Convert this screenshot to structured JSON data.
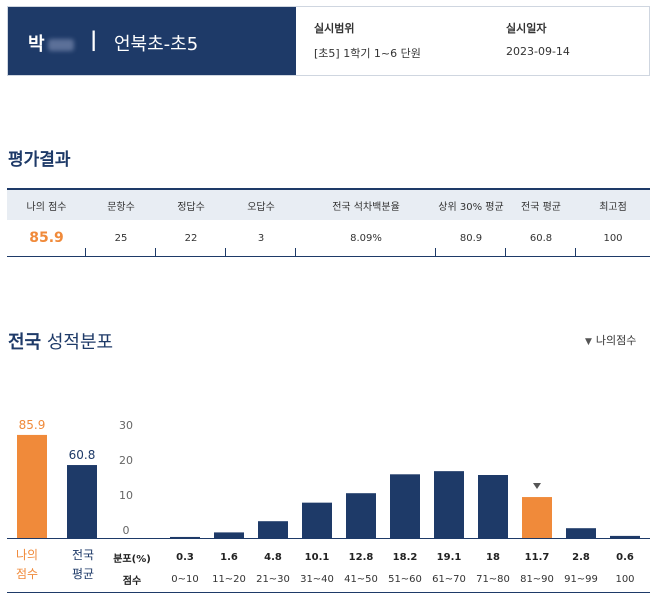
{
  "header": {
    "student_name": "박",
    "separator": "|",
    "class_name": "언북초-초5",
    "range_label": "실시범위",
    "range_value": "[초5] 1학기 1~6 단원",
    "date_label": "실시일자",
    "date_value": "2023-09-14"
  },
  "results": {
    "title": "평가결과",
    "columns": [
      "나의 점수",
      "문항수",
      "정답수",
      "오답수",
      "전국 석차백분율",
      "상위 30% 평균",
      "전국 평균",
      "최고점"
    ],
    "values": [
      "85.9",
      "25",
      "22",
      "3",
      "8.09%",
      "80.9",
      "60.8",
      "100"
    ]
  },
  "distribution": {
    "title_bold": "전국",
    "title_rest": "성적분포",
    "legend": "나의점수",
    "my_label_line1": "나의",
    "my_label_line2": "점수",
    "nat_label_line1": "전국",
    "nat_label_line2": "평균",
    "row1_label": "분포(%)",
    "row2_label": "점수"
  },
  "colors": {
    "navy": "#1e3a68",
    "orange": "#f08a3a"
  },
  "chart_data": [
    {
      "type": "bar",
      "categories": [
        "나의 점수",
        "전국 평균"
      ],
      "values": [
        85.9,
        60.8
      ],
      "ylim": [
        0,
        100
      ]
    },
    {
      "type": "bar",
      "categories": [
        "0~10",
        "11~20",
        "21~30",
        "31~40",
        "41~50",
        "51~60",
        "61~70",
        "71~80",
        "81~90",
        "91~99",
        "100"
      ],
      "values": [
        0.3,
        1.6,
        4.8,
        10.1,
        12.8,
        18.2,
        19.1,
        18,
        11.7,
        2.8,
        0.6
      ],
      "value_labels": [
        "0.3",
        "1.6",
        "4.8",
        "10.1",
        "12.8",
        "18.2",
        "19.1",
        "18",
        "11.7",
        "2.8",
        "0.6"
      ],
      "highlight_index": 8,
      "yticks": [
        "30",
        "20",
        "10",
        "0"
      ],
      "ylim": [
        0,
        30
      ],
      "grid": false
    }
  ]
}
